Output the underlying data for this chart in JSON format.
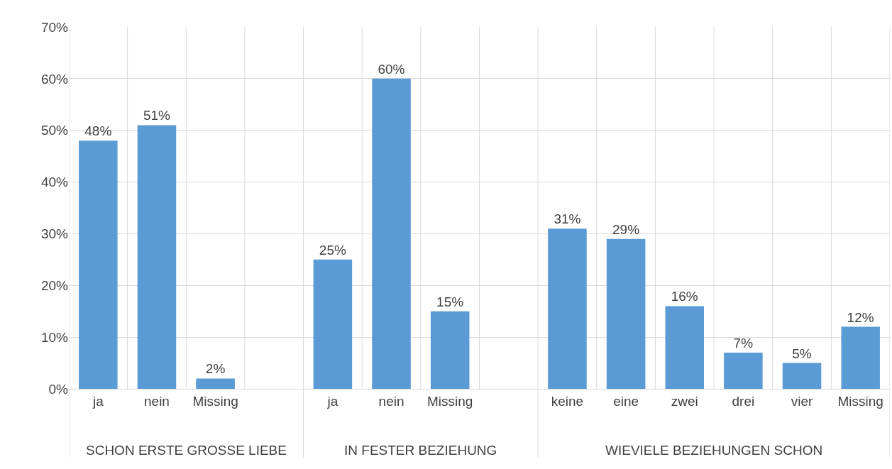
{
  "chart_data": {
    "type": "bar",
    "categories": [
      "ja",
      "nein",
      "Missing",
      null,
      "ja",
      "nein",
      "Missing",
      null,
      "keine",
      "eine",
      "zwei",
      "drei",
      "vier",
      "Missing"
    ],
    "values": [
      48,
      51,
      2,
      null,
      25,
      60,
      15,
      null,
      31,
      29,
      16,
      7,
      5,
      12
    ],
    "value_labels": [
      "48%",
      "51%",
      "2%",
      null,
      "25%",
      "60%",
      "15%",
      null,
      "31%",
      "29%",
      "16%",
      "7%",
      "5%",
      "12%"
    ],
    "color": "#5b9bd5",
    "ylim": [
      0,
      70
    ],
    "yticks": [
      {
        "value": 0,
        "label": "0%"
      },
      {
        "value": 10,
        "label": "10%"
      },
      {
        "value": 20,
        "label": "20%"
      },
      {
        "value": 30,
        "label": "30%"
      },
      {
        "value": 40,
        "label": "40%"
      },
      {
        "value": 50,
        "label": "50%"
      },
      {
        "value": 60,
        "label": "60%"
      },
      {
        "value": 70,
        "label": "70%"
      }
    ],
    "grid": true,
    "annotations": [
      "SCHON ERSTE GROSSE LIEBE",
      "IN FESTER BEZIEHUNG",
      "WIEVIELE BEZIEHUNGEN SCHON"
    ]
  }
}
